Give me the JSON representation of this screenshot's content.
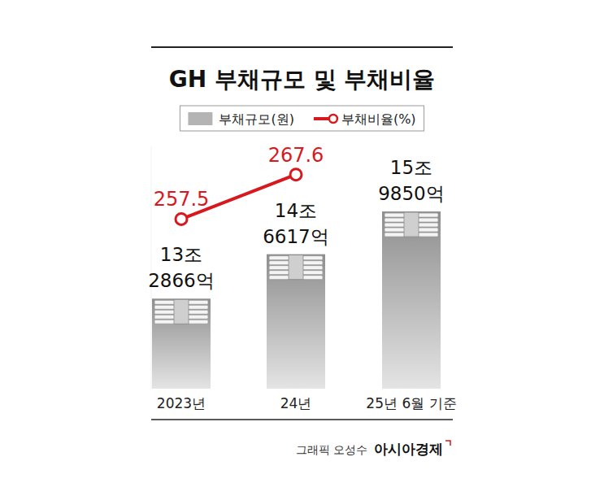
{
  "chart_data": {
    "type": "bar",
    "title": "GH 부채규모 및 부채비율",
    "categories": [
      "2023년",
      "24년",
      "25년 6월 기준"
    ],
    "series": [
      {
        "name": "부채규모(원)",
        "type": "bar",
        "color": "#b4b4b4",
        "values": [
          132866,
          146617,
          159850
        ],
        "value_labels": [
          "13조 2866억",
          "14조 6617억",
          "15조 9850억"
        ]
      },
      {
        "name": "부채비율(%)",
        "type": "line",
        "axis": "y2",
        "color": "#d7191f",
        "marker": "circle",
        "values": [
          257.5,
          267.6,
          null
        ]
      }
    ],
    "ylim": [
      105000,
      180000
    ],
    "y2lim": [
      219,
      274
    ],
    "data_labels": true,
    "tick_labels": false,
    "legend": "top",
    "credit": "그래픽 오성수",
    "publisher": "아시아경제"
  }
}
